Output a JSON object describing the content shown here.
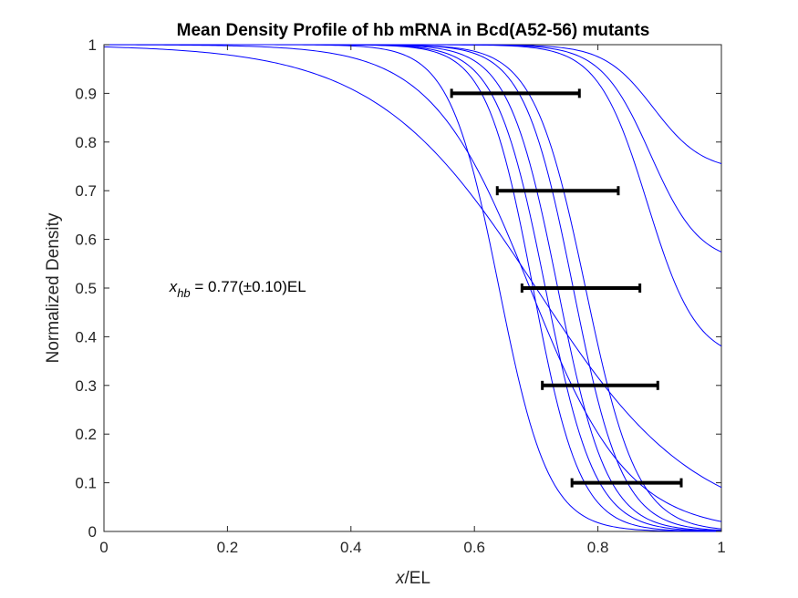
{
  "chart_data": {
    "type": "line",
    "title": "Mean Density Profile of hb mRNA in Bcd(A52-56) mutants",
    "xlabel_italic": "x",
    "xlabel_rest": "/EL",
    "ylabel": "Normalized Density",
    "xlim": [
      0,
      1
    ],
    "ylim": [
      0,
      1
    ],
    "xticks": [
      0,
      0.2,
      0.4,
      0.6,
      0.8,
      1
    ],
    "xtick_labels": [
      "0",
      "0.2",
      "0.4",
      "0.6",
      "0.8",
      "1"
    ],
    "yticks": [
      0,
      0.1,
      0.2,
      0.3,
      0.4,
      0.5,
      0.6,
      0.7,
      0.8,
      0.9,
      1
    ],
    "ytick_labels": [
      "0",
      "0.1",
      "0.2",
      "0.3",
      "0.4",
      "0.5",
      "0.6",
      "0.7",
      "0.8",
      "0.9",
      "1"
    ],
    "line_color": "#0000ff",
    "errorbar_color": "#000000",
    "curves": [
      {
        "x0": 0.64,
        "k": 0.04,
        "baseline": 0.0
      },
      {
        "x0": 0.695,
        "k": 0.038,
        "baseline": 0.0
      },
      {
        "x0": 0.715,
        "k": 0.04,
        "baseline": 0.0
      },
      {
        "x0": 0.735,
        "k": 0.04,
        "baseline": 0.0
      },
      {
        "x0": 0.76,
        "k": 0.04,
        "baseline": 0.0
      },
      {
        "x0": 0.78,
        "k": 0.042,
        "baseline": 0.0
      },
      {
        "x0": 0.69,
        "k": 0.08,
        "baseline": 0.0
      },
      {
        "x0": 0.7,
        "k": 0.13,
        "baseline": 0.0
      },
      {
        "x0": 0.88,
        "k": 0.04,
        "baseline": 0.35
      },
      {
        "x0": 0.885,
        "k": 0.04,
        "baseline": 0.55
      },
      {
        "x0": 0.89,
        "k": 0.04,
        "baseline": 0.74
      }
    ],
    "errorbars": [
      {
        "y": 0.9,
        "xmin": 0.563,
        "xmax": 0.77
      },
      {
        "y": 0.7,
        "xmin": 0.637,
        "xmax": 0.833
      },
      {
        "y": 0.5,
        "xmin": 0.677,
        "xmax": 0.868
      },
      {
        "y": 0.3,
        "xmin": 0.71,
        "xmax": 0.897
      },
      {
        "y": 0.1,
        "xmin": 0.758,
        "xmax": 0.935
      }
    ],
    "annotation": {
      "var": "x",
      "sub": "hb",
      "text": " = 0.77(±0.10)EL",
      "x": 0.1,
      "y": 0.5
    }
  }
}
